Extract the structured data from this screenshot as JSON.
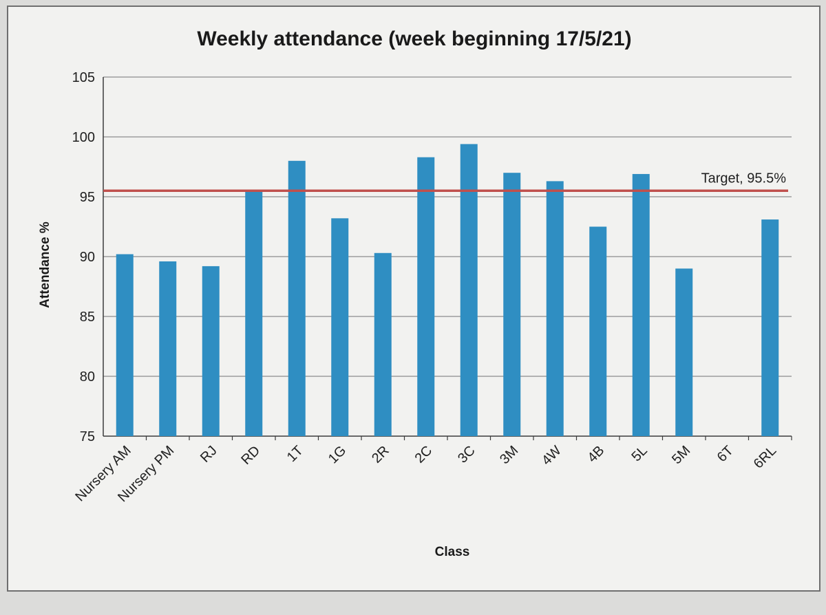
{
  "chart_data": {
    "type": "bar",
    "title": "Weekly attendance (week beginning 17/5/21)",
    "xlabel": "Class",
    "ylabel": "Attendance %",
    "ylim": [
      75,
      105
    ],
    "yticks": [
      75,
      80,
      85,
      90,
      95,
      100,
      105
    ],
    "grid": true,
    "categories": [
      "Nursery AM",
      "Nursery PM",
      "RJ",
      "RD",
      "1T",
      "1G",
      "2R",
      "2C",
      "3C",
      "3M",
      "4W",
      "4B",
      "5L",
      "5M",
      "6T",
      "6RL"
    ],
    "series": [
      {
        "values": [
          90.2,
          89.6,
          89.2,
          95.5,
          98.0,
          93.2,
          90.3,
          98.3,
          99.4,
          97.0,
          96.3,
          92.5,
          96.9,
          89.0,
          null,
          93.1
        ]
      }
    ],
    "target_line": {
      "label": "Target, 95.5%",
      "value": 95.5
    },
    "colors": {
      "bar": "#2f8ec2",
      "target": "#c0504d",
      "grid": "#8c8c8c",
      "axis": "#3a3a3a"
    }
  }
}
